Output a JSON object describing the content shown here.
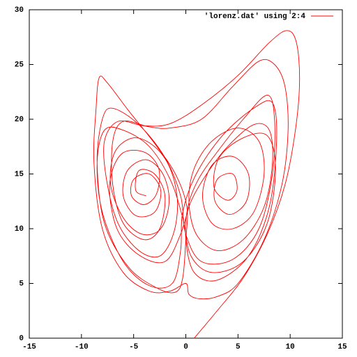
{
  "chart_data": {
    "type": "line",
    "x": [
      0.8,
      3,
      5.5,
      7.8,
      9.5,
      10.5,
      10.9,
      10.6,
      9.7,
      8,
      5,
      1.5,
      -1.5,
      -4,
      -6.5,
      -7.8,
      -7.6,
      -6.5,
      -4.5,
      -2.5,
      -1.2,
      -0.8,
      -1.5,
      -3,
      -5,
      -6.8,
      -7.2,
      -6,
      -4.2,
      -2.4,
      -1.6,
      -2.2,
      -3.8,
      -5.6,
      -6,
      -4.8,
      -3,
      -2.4,
      -3.5,
      -5,
      -5.2,
      -4,
      -2.8,
      -2.6,
      -4,
      -6.2,
      -7.3,
      -6.6,
      -4.5,
      -2,
      -0.5,
      0.5,
      2,
      4,
      6.5,
      8,
      8.3,
      7.5,
      5.5,
      3,
      1,
      0.3,
      0.8,
      2.5,
      5,
      7,
      7.5,
      6.5,
      4.5,
      2.5,
      1.6,
      2.5,
      4.5,
      6,
      5.8,
      4.2,
      2.8,
      3,
      4.5,
      4.9,
      4,
      2.7,
      3.2,
      5.5,
      7.8,
      8.6,
      7.8,
      5.5,
      2.5,
      0.5,
      -0.3,
      -1.5,
      -3.5,
      -6,
      -7.8,
      -8.5,
      -8,
      -6,
      -3.5,
      -1.3,
      -0.5,
      -0.3,
      1,
      3.5,
      6.5,
      8.3,
      8.7,
      8,
      6,
      3,
      0.8,
      0,
      0.2,
      1.2,
      3,
      5.5,
      7.8,
      8.5,
      8.3,
      7,
      4.5,
      1.5,
      0,
      -0.5,
      -2,
      -4.5,
      -7,
      -8,
      -8.5,
      -7.8,
      -5.5,
      -2.8,
      -1,
      -0.3,
      0,
      0.1,
      -1,
      -3,
      -5.5,
      -7.5,
      -8.3,
      -8.6,
      -8.8,
      -8,
      -6,
      -3.5,
      -1.5,
      0,
      0.3,
      1.3,
      3,
      5,
      7.5,
      9.2,
      9.8,
      9.5,
      8.5,
      7,
      4.5,
      1.5,
      -1.5,
      -3.5,
      -6,
      -7,
      -7,
      -6,
      -4,
      -2.5,
      -2,
      -3,
      -4.5,
      -4.8,
      -3.8
    ],
    "series": [
      {
        "name": "'lorenz.dat' using 2:4",
        "color": "#ff0000",
        "values": [
          0,
          2.5,
          5.5,
          9.5,
          14,
          19,
          23.5,
          27,
          28.1,
          27,
          24,
          21.3,
          19.6,
          19.4,
          19.8,
          18,
          14.5,
          10.5,
          8,
          7.5,
          9.5,
          12.5,
          15.5,
          17.5,
          18.3,
          17,
          14,
          11,
          9.5,
          10,
          12.5,
          15,
          16.3,
          15.3,
          13,
          11.2,
          11.5,
          13.5,
          15,
          14.5,
          13,
          12.2,
          13.2,
          15.5,
          17,
          16.8,
          14,
          10,
          7.6,
          7,
          9.5,
          12.5,
          15,
          17.5,
          19.5,
          19,
          16,
          12,
          9,
          8,
          9.5,
          12.5,
          15.5,
          18,
          19.2,
          18,
          15,
          11.5,
          10,
          10.5,
          13,
          15.8,
          16.6,
          15,
          12.5,
          11.3,
          12.5,
          14.5,
          15,
          13.5,
          12.6,
          13.8,
          16.5,
          18.3,
          18.5,
          15.5,
          10.5,
          7,
          6,
          7.5,
          11,
          14.5,
          17.5,
          19,
          19,
          16,
          11.5,
          7,
          4.8,
          5,
          8,
          11.5,
          15,
          18.5,
          21,
          21.5,
          18,
          12,
          7.5,
          5.3,
          6,
          9,
          12,
          14.5,
          17,
          20,
          22.2,
          20,
          15,
          10,
          7.2,
          7,
          9.5,
          13,
          16.5,
          19.5,
          21,
          20,
          16,
          10.5,
          6.5,
          4.6,
          4.2,
          5.5,
          9,
          12,
          15,
          17.8,
          20.8,
          23.3,
          23.8,
          21,
          16,
          10,
          6,
          4.3,
          4.3,
          5,
          4,
          3.6,
          3.8,
          5,
          9,
          14,
          19,
          23,
          25,
          25.3,
          23,
          20,
          19.2,
          19.3,
          19.8,
          18,
          14,
          10.5,
          9,
          10,
          13,
          15,
          15.3,
          13.5,
          13
        ]
      }
    ],
    "xlim": [
      -15,
      15
    ],
    "xticks": [
      -15,
      -10,
      -5,
      0,
      5,
      10,
      15
    ],
    "ylim": [
      0,
      30
    ],
    "yticks": [
      0,
      5,
      10,
      15,
      20,
      25,
      30
    ],
    "grid": false,
    "legend": "top-right"
  }
}
